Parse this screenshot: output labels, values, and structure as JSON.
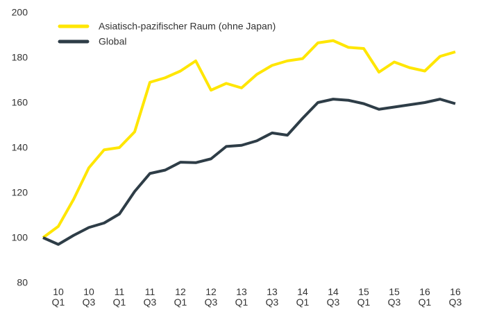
{
  "chart_data": {
    "type": "line",
    "categories": [
      null,
      "10\nQ1",
      null,
      "10\nQ3",
      null,
      "11\nQ1",
      null,
      "11\nQ3",
      null,
      "12\nQ1",
      null,
      "12\nQ3",
      null,
      "13\nQ1",
      null,
      "13\nQ3",
      null,
      "14\nQ1",
      null,
      "14\nQ3",
      null,
      "15\nQ1",
      null,
      "15\nQ3",
      null,
      "16\nQ1",
      null,
      "16\nQ3"
    ],
    "series": [
      {
        "name": "Asiatisch-pazifischer Raum (ohne Japan)",
        "color": "#ffe600",
        "values": [
          100,
          105,
          117,
          131,
          139,
          140,
          147,
          169,
          171,
          174,
          178.5,
          165.5,
          168.5,
          166.5,
          172.5,
          176.5,
          178.5,
          179.5,
          186.5,
          187.5,
          184.5,
          184,
          173.5,
          178,
          175.5,
          174,
          180.5,
          182.5
        ]
      },
      {
        "name": "Global",
        "color": "#2e3d47",
        "values": [
          100,
          97,
          101,
          104.5,
          106.5,
          110.5,
          120.5,
          128.5,
          130,
          133.5,
          133.3,
          135,
          140.5,
          141,
          143,
          146.5,
          145.5,
          153,
          160,
          161.5,
          161,
          159.5,
          157,
          158,
          159,
          160,
          161.5,
          159.5
        ]
      }
    ],
    "ylim": [
      80,
      200
    ],
    "yticks": [
      80,
      100,
      120,
      140,
      160,
      180,
      200
    ],
    "grid": false,
    "legend": "top-left"
  }
}
